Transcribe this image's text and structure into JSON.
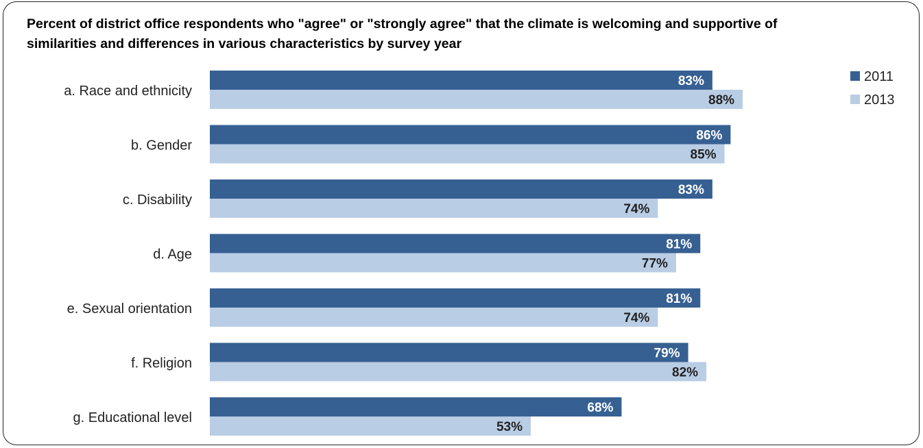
{
  "chart_data": {
    "type": "bar",
    "orientation": "horizontal",
    "title": "Percent of district office respondents who \"agree\" or \"strongly agree\" that the climate is welcoming and supportive of similarities and differences in various characteristics by survey year",
    "categories": [
      "a. Race and ethnicity",
      "b. Gender",
      "c. Disability",
      "d. Age",
      "e. Sexual orientation",
      "f. Religion",
      "g. Educational level"
    ],
    "series": [
      {
        "name": "2011",
        "color": "#376092",
        "label_color": "#ffffff",
        "values": [
          83,
          86,
          83,
          81,
          81,
          79,
          68
        ],
        "labels": [
          "83%",
          "86%",
          "83%",
          "81%",
          "81%",
          "79%",
          "68%"
        ]
      },
      {
        "name": "2013",
        "color": "#b9cde5",
        "label_color": "#222222",
        "values": [
          88,
          85,
          74,
          77,
          74,
          82,
          53
        ],
        "labels": [
          "88%",
          "85%",
          "74%",
          "77%",
          "74%",
          "82%",
          "53%"
        ]
      }
    ],
    "xlim": [
      0,
      100
    ],
    "value_suffix": "%",
    "grid": false,
    "legend_position": "top-right"
  }
}
